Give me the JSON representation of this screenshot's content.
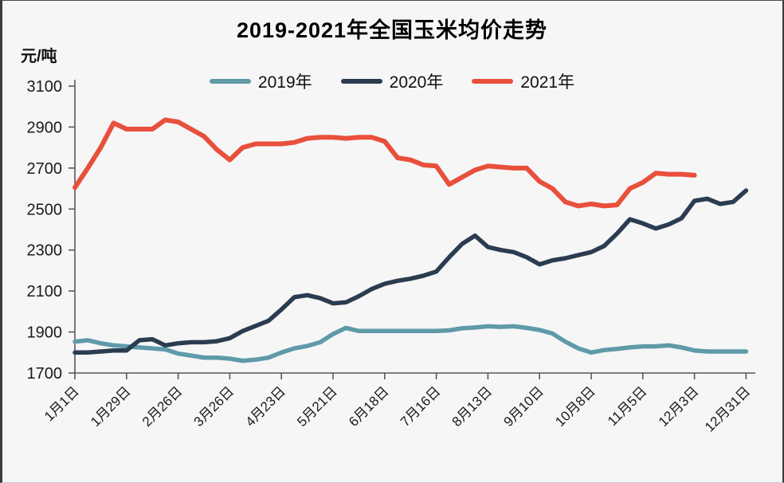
{
  "colors": {
    "background": "#f6f6f7",
    "axis": "#595959",
    "text": "#1a1a1a",
    "series_2019": "#5f9aa8",
    "series_2020": "#2b3c50",
    "series_2021": "#e8503c"
  },
  "chart_data": {
    "type": "line",
    "title": "2019-2021年全国玉米均价走势",
    "unit_label": "元/吨",
    "ylabel": "元/吨",
    "xlabel": "",
    "ylim": [
      1700,
      3100
    ],
    "yticks": [
      1700,
      1900,
      2100,
      2300,
      2500,
      2700,
      2900,
      3100
    ],
    "grid": false,
    "legend_position": "top",
    "x_tick_labels": [
      "1月1日",
      "1月29日",
      "2月26日",
      "3月26日",
      "4月23日",
      "5月21日",
      "6月18日",
      "7月16日",
      "8月13日",
      "9月10日",
      "10月8日",
      "11月5日",
      "12月3日",
      "12月31日"
    ],
    "weeks_per_tick": 4,
    "total_weeks": 52,
    "series": [
      {
        "name": "2019年",
        "color": "#5f9aa8",
        "values": [
          1853,
          1860,
          1845,
          1835,
          1830,
          1825,
          1820,
          1815,
          1795,
          1785,
          1775,
          1775,
          1770,
          1760,
          1765,
          1775,
          1800,
          1820,
          1832,
          1850,
          1890,
          1920,
          1905,
          1905,
          1905,
          1905,
          1905,
          1905,
          1905,
          1908,
          1918,
          1922,
          1928,
          1925,
          1928,
          1920,
          1910,
          1893,
          1853,
          1820,
          1800,
          1812,
          1818,
          1825,
          1830,
          1830,
          1835,
          1825,
          1810,
          1805,
          1805,
          1805,
          1805
        ]
      },
      {
        "name": "2020年",
        "color": "#2b3c50",
        "values": [
          1800,
          1800,
          1805,
          1810,
          1810,
          1860,
          1865,
          1835,
          1845,
          1850,
          1850,
          1855,
          1870,
          1905,
          1930,
          1955,
          2010,
          2070,
          2080,
          2065,
          2040,
          2045,
          2075,
          2110,
          2135,
          2150,
          2160,
          2175,
          2195,
          2265,
          2330,
          2370,
          2315,
          2300,
          2290,
          2265,
          2230,
          2250,
          2260,
          2275,
          2290,
          2320,
          2380,
          2450,
          2430,
          2405,
          2425,
          2455,
          2540,
          2550,
          2525,
          2535,
          2590
        ]
      },
      {
        "name": "2021年",
        "color": "#e8503c",
        "values": [
          2605,
          2700,
          2800,
          2920,
          2890,
          2890,
          2890,
          2935,
          2925,
          2890,
          2855,
          2790,
          2740,
          2800,
          2818,
          2818,
          2818,
          2825,
          2845,
          2850,
          2850,
          2845,
          2850,
          2850,
          2830,
          2750,
          2740,
          2715,
          2710,
          2620,
          2655,
          2690,
          2710,
          2705,
          2700,
          2700,
          2635,
          2600,
          2535,
          2515,
          2525,
          2515,
          2520,
          2600,
          2630,
          2675,
          2670,
          2670,
          2665
        ]
      }
    ]
  }
}
